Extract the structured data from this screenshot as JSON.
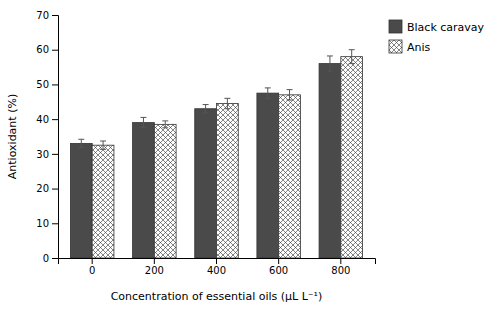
{
  "chart_data": {
    "type": "bar",
    "xlabel": "Concentration of essential oils (μL L⁻¹)",
    "ylabel": "Antioxidant (%)",
    "categories": [
      "0",
      "200",
      "400",
      "600",
      "800"
    ],
    "series": [
      {
        "name": "Black caravay",
        "color": "#4a4a4a",
        "values": [
          33.0,
          39.0,
          43.0,
          47.5,
          56.0
        ],
        "errors": [
          1.2,
          1.5,
          1.2,
          1.5,
          2.2
        ]
      },
      {
        "name": "Anis",
        "color": "#ffffff",
        "values": [
          32.5,
          38.5,
          44.5,
          47.0,
          58.0
        ],
        "errors": [
          1.2,
          1.0,
          1.5,
          1.5,
          2.0
        ]
      }
    ],
    "ylim": [
      0,
      70
    ],
    "yticks": [
      0,
      10,
      20,
      30,
      40,
      50,
      60,
      70
    ],
    "grid": false,
    "legend": "upper right"
  }
}
